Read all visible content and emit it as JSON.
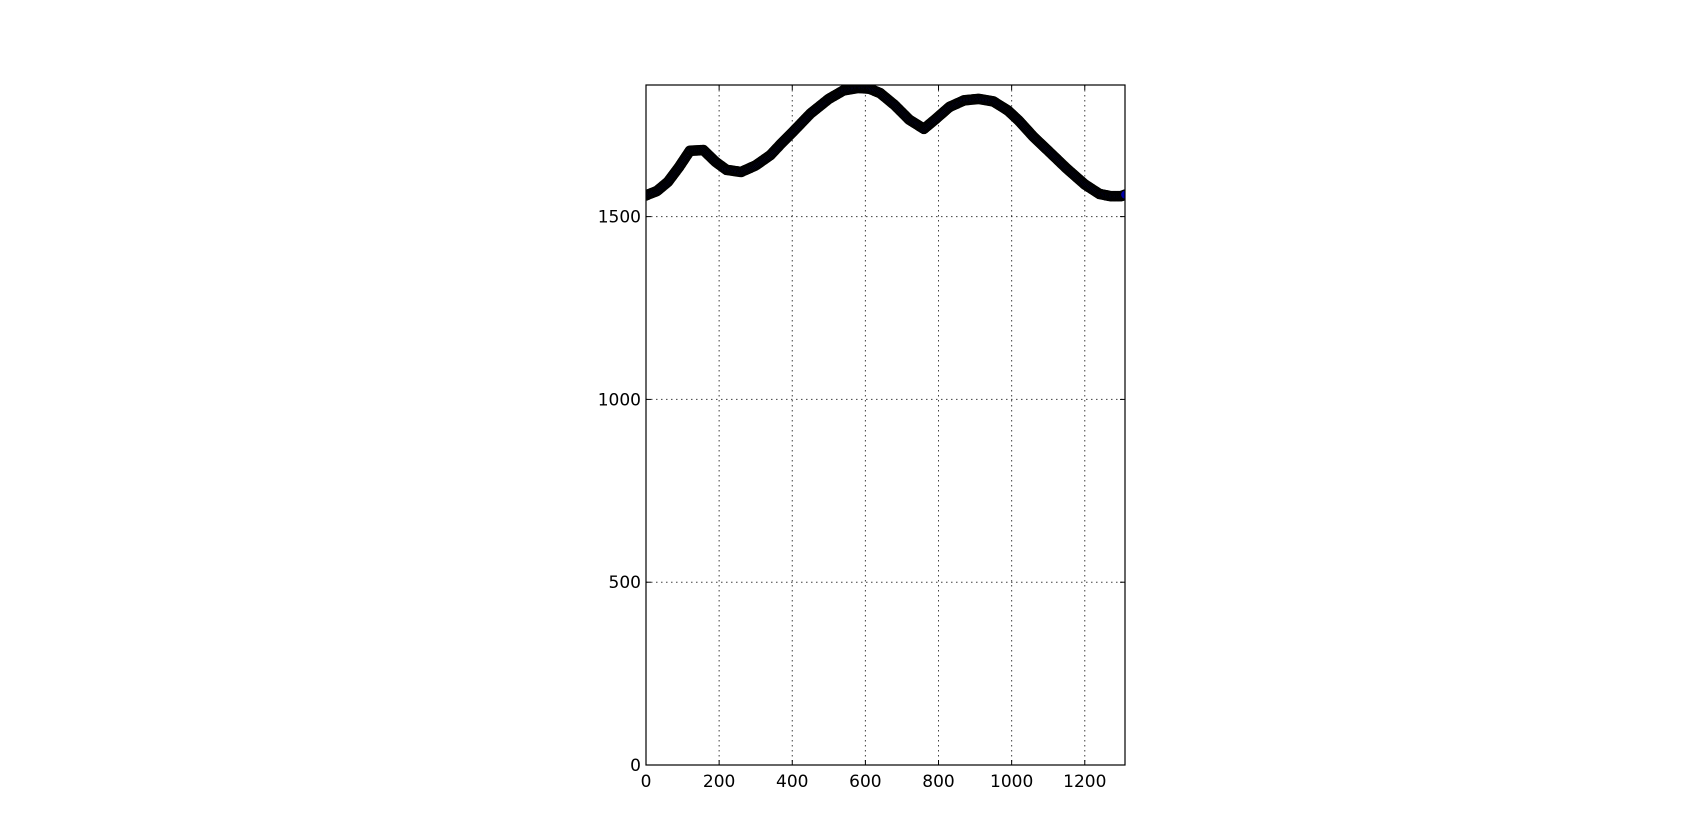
{
  "chart_data": {
    "type": "scatter",
    "title": "",
    "xlabel": "",
    "ylabel": "",
    "xlim": [
      0,
      1310
    ],
    "ylim": [
      0,
      1860
    ],
    "grid": true,
    "xticks": [
      0,
      200,
      400,
      600,
      800,
      1000,
      1200
    ],
    "yticks": [
      0,
      500,
      1000,
      1500
    ],
    "xtick_labels": [
      "0",
      "200",
      "400",
      "600",
      "800",
      "1000",
      "1200"
    ],
    "ytick_labels": [
      "0",
      "500",
      "1000",
      "1500"
    ],
    "marker_face_color": "#0000aa",
    "marker_edge_color": "#000000",
    "series": [
      {
        "x": [
          0,
          30,
          60,
          90,
          120,
          157,
          190,
          220,
          260,
          300,
          340,
          370,
          400,
          450,
          500,
          540,
          580,
          610,
          640,
          680,
          720,
          760,
          790,
          830,
          870,
          910,
          950,
          990,
          1020,
          1060,
          1100,
          1150,
          1200,
          1240,
          1270,
          1300,
          1310
        ],
        "y": [
          1558,
          1570,
          1595,
          1635,
          1680,
          1682,
          1650,
          1628,
          1622,
          1640,
          1668,
          1700,
          1730,
          1782,
          1822,
          1845,
          1852,
          1850,
          1838,
          1805,
          1765,
          1740,
          1765,
          1800,
          1818,
          1822,
          1815,
          1790,
          1762,
          1718,
          1680,
          1632,
          1588,
          1562,
          1556,
          1556,
          1560
        ]
      }
    ]
  }
}
